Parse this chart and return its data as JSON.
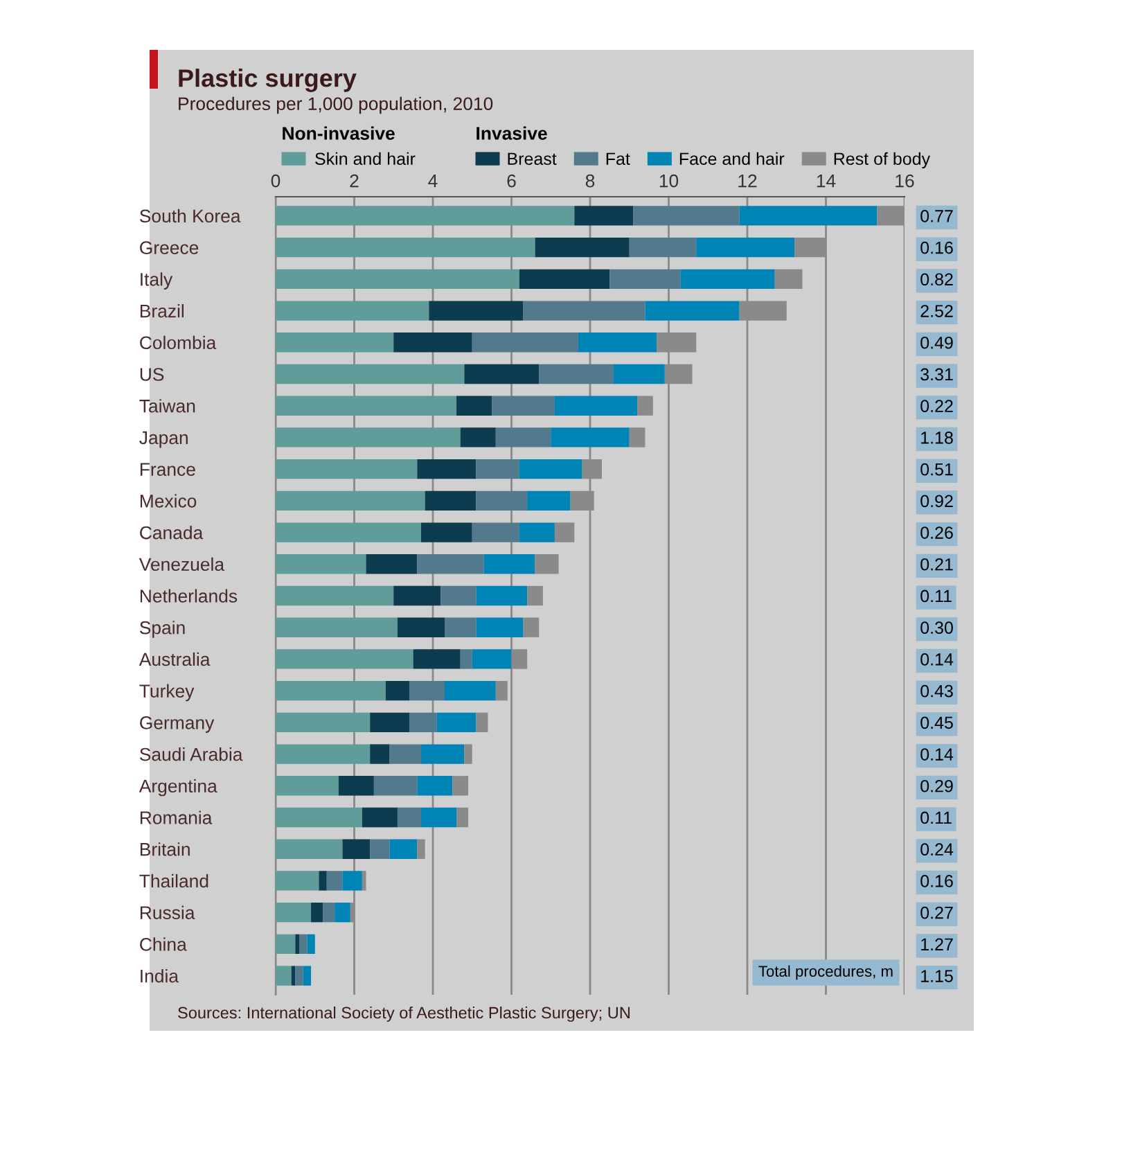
{
  "chart_data": {
    "type": "bar",
    "orientation": "horizontal",
    "stacked": true,
    "title": "Plastic surgery",
    "subtitle": "Procedures per 1,000 population, 2010",
    "categories": [
      "South Korea",
      "Greece",
      "Italy",
      "Brazil",
      "Colombia",
      "US",
      "Taiwan",
      "Japan",
      "France",
      "Mexico",
      "Canada",
      "Venezuela",
      "Netherlands",
      "Spain",
      "Australia",
      "Turkey",
      "Germany",
      "Saudi Arabia",
      "Argentina",
      "Romania",
      "Britain",
      "Thailand",
      "Russia",
      "China",
      "India"
    ],
    "y2_categories": [
      "0.77",
      "0.16",
      "0.82",
      "2.52",
      "0.49",
      "3.31",
      "0.22",
      "1.18",
      "0.51",
      "0.92",
      "0.26",
      "0.21",
      "0.11",
      "0.30",
      "0.14",
      "0.43",
      "0.45",
      "0.14",
      "0.29",
      "0.11",
      "0.24",
      "0.16",
      "0.27",
      "1.27",
      "1.15"
    ],
    "series": [
      {
        "name": "Skin and hair",
        "color": "#5f9c9a",
        "values": [
          7.6,
          6.6,
          6.2,
          3.9,
          3.0,
          4.8,
          4.6,
          4.7,
          3.6,
          3.8,
          3.7,
          2.3,
          3.0,
          3.1,
          3.5,
          2.8,
          2.4,
          2.4,
          1.6,
          2.2,
          1.7,
          1.1,
          0.9,
          0.5,
          0.4
        ]
      },
      {
        "name": "Breast",
        "color": "#0d3b50",
        "values": [
          1.5,
          2.4,
          2.3,
          2.4,
          2.0,
          1.9,
          0.9,
          0.9,
          1.5,
          1.3,
          1.3,
          1.3,
          1.2,
          1.2,
          1.2,
          0.6,
          1.0,
          0.5,
          0.9,
          0.9,
          0.7,
          0.2,
          0.3,
          0.1,
          0.1
        ]
      },
      {
        "name": "Fat",
        "color": "#527a8c",
        "values": [
          2.7,
          1.7,
          1.8,
          3.1,
          2.7,
          1.9,
          1.6,
          1.4,
          1.1,
          1.3,
          1.2,
          1.7,
          0.9,
          0.8,
          0.3,
          0.9,
          0.7,
          0.8,
          1.1,
          0.6,
          0.5,
          0.4,
          0.3,
          0.2,
          0.2
        ]
      },
      {
        "name": "Face and hair",
        "color": "#0083b5",
        "values": [
          3.5,
          2.5,
          2.4,
          2.4,
          2.0,
          1.3,
          2.1,
          2.0,
          1.6,
          1.1,
          0.9,
          1.3,
          1.3,
          1.2,
          1.0,
          1.3,
          1.0,
          1.1,
          0.9,
          0.9,
          0.7,
          0.5,
          0.4,
          0.2,
          0.2
        ]
      },
      {
        "name": "Rest of body",
        "color": "#8a8a8a",
        "values": [
          0.7,
          0.8,
          0.7,
          1.2,
          1.0,
          0.7,
          0.4,
          0.4,
          0.5,
          0.6,
          0.5,
          0.6,
          0.4,
          0.4,
          0.4,
          0.3,
          0.3,
          0.2,
          0.4,
          0.3,
          0.2,
          0.1,
          0.1,
          0,
          0
        ]
      }
    ],
    "xlim": [
      0,
      16
    ],
    "xticks": [
      0,
      2,
      4,
      6,
      8,
      10,
      12,
      14,
      16
    ],
    "grid": "x",
    "legend": "top",
    "annotations": [
      "Non-invasive",
      "Invasive",
      "Total procedures, m",
      "Sources: International Society of Aesthetic Plastic Surgery; UN"
    ]
  }
}
